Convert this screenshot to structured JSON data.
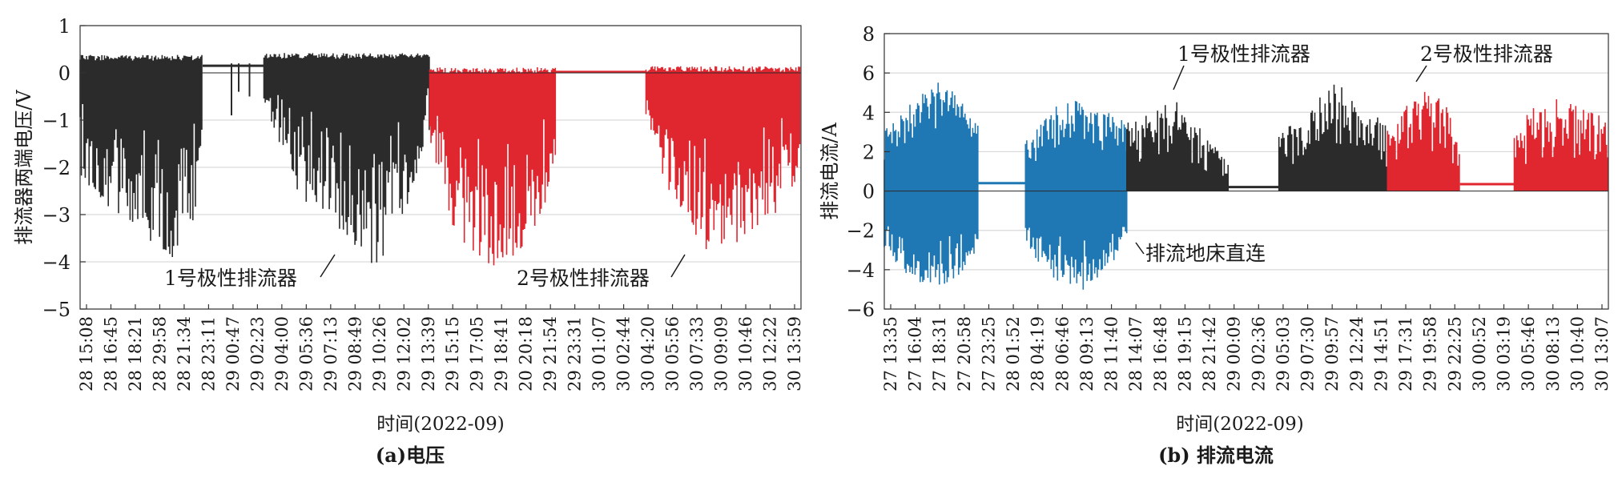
{
  "charts": [
    {
      "id": "a",
      "type": "line",
      "caption": "(a)电压",
      "xlabel": "时间(2022-09)",
      "ylabel": "排流器两端电压/V",
      "ylim": [
        -5,
        1
      ],
      "yticks": [
        1,
        0,
        -1,
        -2,
        -3,
        -4,
        -5
      ],
      "ytick_labels": [
        "1",
        "0",
        "−1",
        "−2",
        "−3",
        "−4",
        "−5"
      ],
      "grid": true,
      "x_ticks": [
        "28 15:08",
        "28 16:45",
        "28 18:21",
        "28 29:58",
        "28 21:34",
        "28 23:11",
        "29 00:47",
        "29 02:23",
        "29 04:00",
        "29 05:36",
        "29 07:13",
        "29 08:49",
        "29 10:26",
        "29 12:02",
        "29 13:39",
        "29 15:15",
        "29 17:05",
        "29 18:41",
        "20 20:18",
        "29 21:54",
        "29 23:31",
        "30 01:07",
        "30 02:44",
        "30 04:20",
        "30 05:56",
        "30 07:33",
        "30 09:09",
        "30 10:46",
        "30 12:22",
        "30 13:59"
      ],
      "colors": {
        "dark": "#2b2b2b",
        "red": "#e0262f"
      },
      "segments": [
        {
          "series": "1号极性排流器",
          "color": "dark",
          "x_range": [
            0,
            0.27
          ],
          "style": "band",
          "upper": 0.35,
          "lower_envelope": [
            [
              0,
              -2.2
            ],
            [
              0.08,
              -3.0
            ],
            [
              0.15,
              -3.8
            ],
            [
              0.2,
              -4.1
            ],
            [
              0.25,
              -3.2
            ],
            [
              0.27,
              -1.2
            ]
          ]
        },
        {
          "series": "1号极性排流器",
          "color": "dark",
          "x_range": [
            0.27,
            0.4
          ],
          "style": "idle",
          "level": 0.15
        },
        {
          "series": "1号极性排流器",
          "color": "dark",
          "x_range": [
            0.4,
            0.69
          ],
          "style": "band",
          "upper": 0.4,
          "lower_envelope": [
            [
              0.4,
              -0.6
            ],
            [
              0.45,
              -2.6
            ],
            [
              0.5,
              -3.4
            ],
            [
              0.55,
              -4.2
            ],
            [
              0.6,
              -3.3
            ],
            [
              0.65,
              -2.1
            ],
            [
              0.69,
              -1.2
            ]
          ]
        },
        {
          "series": "2号极性排流器",
          "color": "red",
          "x_range": [
            0.69,
            0.9
          ],
          "style": "band",
          "upper": 0.1,
          "lower_envelope": [
            [
              0.69,
              -2.4
            ],
            [
              0.74,
              -3.5
            ],
            [
              0.79,
              -4.2
            ],
            [
              0.84,
              -3.8
            ],
            [
              0.88,
              -3.1
            ],
            [
              0.9,
              -1.2
            ]
          ]
        },
        {
          "series": "2号极性排流器",
          "color": "red",
          "x_range": [
            0.9,
            1.0
          ],
          "style": "idle",
          "level": 0.0
        }
      ],
      "segments2": [
        {
          "series": "2号极性排流器",
          "color": "red",
          "x_range": [
            0.0,
            0.3
          ],
          "style": "band",
          "upper": 0.15,
          "lower_envelope": [
            [
              0,
              -1.2
            ],
            [
              0.05,
              -3.0
            ],
            [
              0.12,
              -3.9
            ],
            [
              0.2,
              -3.5
            ],
            [
              0.26,
              -2.8
            ],
            [
              0.3,
              -2.3
            ]
          ]
        }
      ],
      "annotations": [
        {
          "text": "1号极性排流器",
          "ann_x": 0.195,
          "ann_y": -3.85
        },
        {
          "text": "2号极性排流器",
          "ann_x": 0.715,
          "ann_y": -3.85
        }
      ]
    },
    {
      "id": "b",
      "type": "line",
      "caption": "(b) 排流电流",
      "xlabel": "时间(2022-09)",
      "ylabel": "排流电流/A",
      "ylim": [
        -6,
        8
      ],
      "yticks": [
        8,
        6,
        4,
        2,
        0,
        -2,
        -4,
        -6
      ],
      "ytick_labels": [
        "8",
        "6",
        "4",
        "2",
        "0",
        "−2",
        "−4",
        "−6"
      ],
      "grid": true,
      "x_ticks": [
        "27 13:35",
        "27 16:04",
        "27 18:31",
        "27 20:58",
        "27 23:25",
        "28 01:52",
        "28 04:19",
        "28 06:46",
        "28 09:13",
        "28 11:40",
        "28 14:07",
        "28 16:48",
        "28 19:15",
        "28 21:42",
        "29 00:09",
        "29 02:36",
        "29 05:03",
        "29 07:30",
        "29 09:57",
        "29 12:24",
        "29 14:51",
        "29 17:31",
        "29 19:58",
        "29 22:25",
        "30 00:52",
        "30 03:19",
        "30 05:46",
        "30 08:13",
        "30 10:40",
        "30 13:07"
      ],
      "colors": {
        "blue": "#1f78b4",
        "dark": "#2b2b2b",
        "red": "#e0262f"
      },
      "annotations": [
        {
          "text": "1号极性排流器",
          "ann_x": 0.4,
          "ann_y": 4.7
        },
        {
          "text": "2号极性排流器",
          "ann_x": 0.73,
          "ann_y": 5.3
        },
        {
          "text": "排流地床直连",
          "ann_x": 0.335,
          "ann_y": -2.7
        }
      ]
    }
  ]
}
